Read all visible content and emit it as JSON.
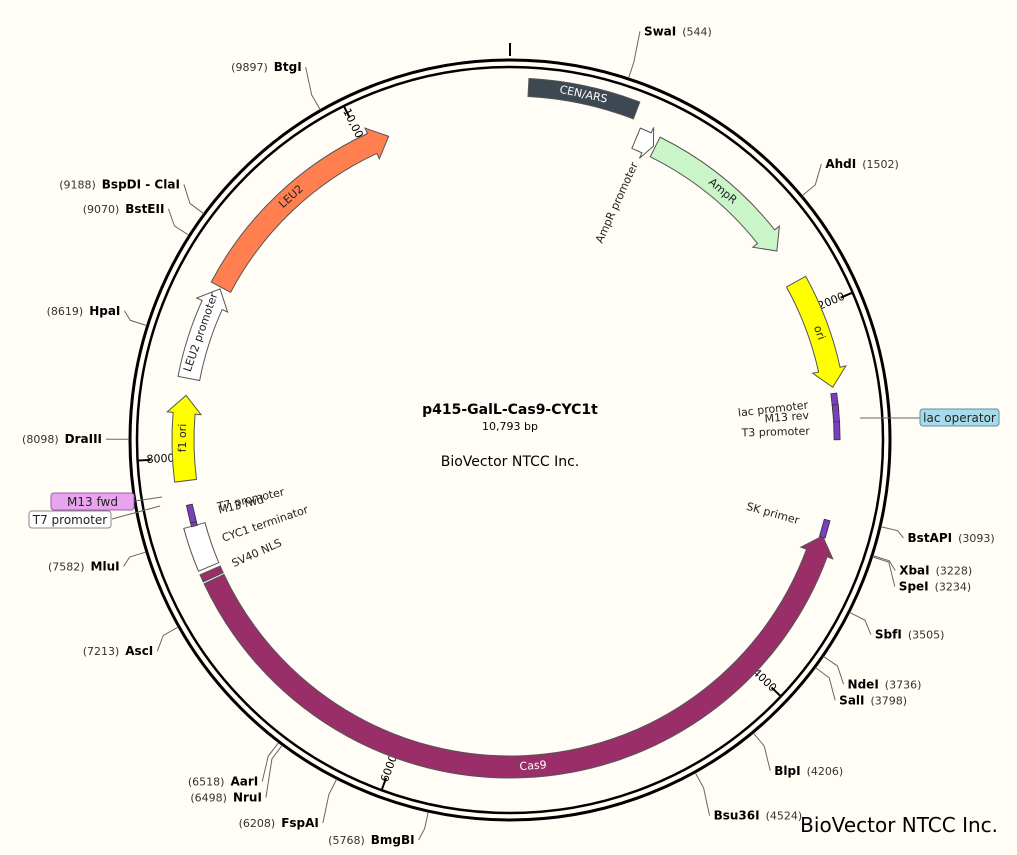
{
  "plasmid": {
    "name": "p415-GalL-Cas9-CYC1t",
    "length_label": "10,793 bp",
    "length": 10793,
    "company": "BioVector NTCC Inc."
  },
  "watermark": "BioVector NTCC Inc.",
  "ticks": [
    {
      "label": "2000",
      "pos": 2000
    },
    {
      "label": "4000",
      "pos": 4000
    },
    {
      "label": "6000",
      "pos": 6000
    },
    {
      "label": "8000",
      "pos": 8000
    },
    {
      "label": "10,000",
      "pos": 10000
    }
  ],
  "features": [
    {
      "name": "CEN/ARS",
      "start": 90,
      "end": 630,
      "track": "outer",
      "shape": "box",
      "color": "#3d4852",
      "textColor": "#ffffff"
    },
    {
      "name": "AmprR promoter",
      "label": "AmpR promoter",
      "start": 680,
      "end": 780,
      "track": "inner",
      "shape": "arrow",
      "color": "#ffffff",
      "dir": 1
    },
    {
      "name": "AmpR",
      "start": 790,
      "end": 1640,
      "track": "inner",
      "shape": "arrow",
      "color": "#c9f5c9",
      "dir": 1
    },
    {
      "name": "ori",
      "start": 1830,
      "end": 2420,
      "track": "inner",
      "shape": "arrow",
      "color": "#ffff00",
      "dir": 1
    },
    {
      "name": "Cas9",
      "start": 3210,
      "end": 7340,
      "track": "inner",
      "shape": "arrow",
      "color": "#9a2e68",
      "dir": -1,
      "textColor": "#ffffff"
    },
    {
      "name": "SV40 NLS",
      "start": 7350,
      "end": 7390,
      "track": "inner",
      "shape": "box",
      "color": "#9a2e68"
    },
    {
      "name": "CYC1 terminator",
      "start": 7410,
      "end": 7640,
      "track": "inner",
      "shape": "box",
      "color": "#ffffff"
    },
    {
      "name": "f1 ori",
      "start": 7880,
      "end": 8330,
      "track": "inner",
      "shape": "arrow",
      "color": "#ffff00",
      "dir": 1
    },
    {
      "name": "LEU2 promoter",
      "start": 8420,
      "end": 8920,
      "track": "inner",
      "shape": "arrow",
      "color": "#ffffff",
      "dir": 1
    },
    {
      "name": "LEU2",
      "start": 8930,
      "end": 10140,
      "track": "inner",
      "shape": "arrow",
      "color": "#ff7f50",
      "dir": 1
    }
  ],
  "small_features": [
    {
      "name": "lac promoter",
      "pos": 2500
    },
    {
      "name": "M13 rev",
      "pos": 2560
    },
    {
      "name": "T3 promoter",
      "pos": 2650
    },
    {
      "name": "SK primer",
      "pos": 3170
    },
    {
      "name": "M13 fwd",
      "pos": 7685
    },
    {
      "name": "T7 promoter",
      "pos": 7705
    }
  ],
  "callouts": [
    {
      "name": "lac operator",
      "color": "#a7dbea"
    },
    {
      "name": "M13 fwd",
      "color": "#e9a4f0"
    },
    {
      "name": "T7 promoter",
      "color": "#ffffff"
    }
  ],
  "sites": [
    {
      "name": "SwaI",
      "pos": 544,
      "label_pos": "(544)"
    },
    {
      "name": "AhdI",
      "pos": 1502,
      "label_pos": "(1502)"
    },
    {
      "name": "BstAPI",
      "pos": 3093,
      "label_pos": "(3093)"
    },
    {
      "name": "XbaI",
      "pos": 3228,
      "label_pos": "(3228)"
    },
    {
      "name": "SpeI",
      "pos": 3234,
      "label_pos": "(3234)"
    },
    {
      "name": "SbfI",
      "pos": 3505,
      "label_pos": "(3505)"
    },
    {
      "name": "NdeI",
      "pos": 3736,
      "label_pos": "(3736)"
    },
    {
      "name": "SalI",
      "pos": 3798,
      "label_pos": "(3798)"
    },
    {
      "name": "BlpI",
      "pos": 4206,
      "label_pos": "(4206)"
    },
    {
      "name": "Bsu36I",
      "pos": 4524,
      "label_pos": "(4524)"
    },
    {
      "name": "BmgBI",
      "pos": 5768,
      "label_pos": "(5768)"
    },
    {
      "name": "FspAI",
      "pos": 6208,
      "label_pos": "(6208)"
    },
    {
      "name": "NruI",
      "pos": 6498,
      "label_pos": "(6498)"
    },
    {
      "name": "AarI",
      "pos": 6518,
      "label_pos": "(6518)"
    },
    {
      "name": "AscI",
      "pos": 7213,
      "label_pos": "(7213)"
    },
    {
      "name": "MluI",
      "pos": 7582,
      "label_pos": "(7582)"
    },
    {
      "name": "DraIII",
      "pos": 8098,
      "label_pos": "(8098)"
    },
    {
      "name": "HpaI",
      "pos": 8619,
      "label_pos": "(8619)"
    },
    {
      "name": "BstEII",
      "pos": 9070,
      "label_pos": "(9070)"
    },
    {
      "name": "BspDI - ClaI",
      "pos": 9188,
      "label_pos": "(9188)"
    },
    {
      "name": "BtgI",
      "pos": 9897,
      "label_pos": "(9897)"
    }
  ]
}
